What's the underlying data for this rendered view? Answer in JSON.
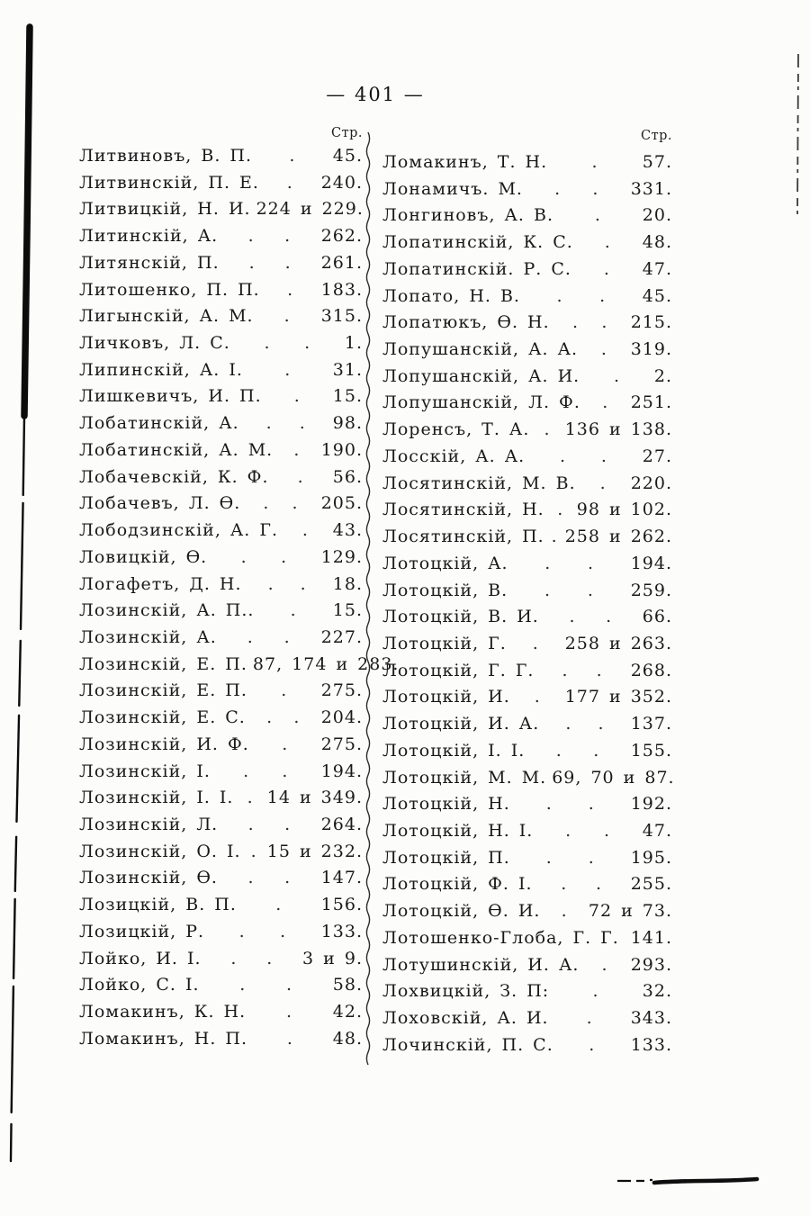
{
  "page_header": {
    "page_number_text": "— 401 —"
  },
  "left_column": {
    "header_label": "Стр.",
    "entries": [
      {
        "name": "Литвиновъ, В. П.",
        "leaders": ".",
        "pages": "45."
      },
      {
        "name": "Литвинскій, П. Е.",
        "leaders": ".",
        "pages": "240."
      },
      {
        "name": "Литвицкій, Н. И.",
        "leaders": "",
        "pages": "224 и 229."
      },
      {
        "name": "Литинскій, А.",
        "leaders": ". .",
        "pages": "262."
      },
      {
        "name": "Литянскій, П.",
        "leaders": ". .",
        "pages": "261."
      },
      {
        "name": "Литошенко, П. П.",
        "leaders": ".",
        "pages": "183."
      },
      {
        "name": "Лигынскій, А. М.",
        "leaders": ".",
        "pages": "315."
      },
      {
        "name": "Личковъ, Л. С.",
        "leaders": ". .",
        "pages": "1."
      },
      {
        "name": "Липинскій, А. І.",
        "leaders": ".",
        "pages": "31."
      },
      {
        "name": "Лишкевичъ, И. П.",
        "leaders": ".",
        "pages": "15."
      },
      {
        "name": "Лобатинскій, А.",
        "leaders": ". .",
        "pages": "98."
      },
      {
        "name": "Лобатинскій, А. М.",
        "leaders": ".",
        "pages": "190."
      },
      {
        "name": "Лобачевскій, К. Ф.",
        "leaders": ".",
        "pages": "56."
      },
      {
        "name": "Лобачевъ, Л. Ѳ.",
        "leaders": ". .",
        "pages": "205."
      },
      {
        "name": "Лободзинскій, А. Г.",
        "leaders": ".",
        "pages": "43."
      },
      {
        "name": "Ловицкій, Ѳ.",
        "leaders": ". .",
        "pages": "129."
      },
      {
        "name": "Логафетъ, Д. Н.",
        "leaders": ". .",
        "pages": "18."
      },
      {
        "name": "Лозинскій, А. П..",
        "leaders": ".",
        "pages": "15."
      },
      {
        "name": "Лозинскій, А.",
        "leaders": ". .",
        "pages": "227."
      },
      {
        "name": "Лозинскій, Е. П.",
        "leaders": "",
        "pages": "87, 174 и 283."
      },
      {
        "name": "Лозинскій, Е. П.",
        "leaders": ".",
        "pages": "275."
      },
      {
        "name": "Лозинскій, Е. С.",
        "leaders": ". .",
        "pages": "204."
      },
      {
        "name": "Лозинскій, И. Ф.",
        "leaders": ".",
        "pages": "275."
      },
      {
        "name": "Лозинскій, І.",
        "leaders": ". .",
        "pages": "194."
      },
      {
        "name": "Лозинскій, І. І.",
        "leaders": ".",
        "pages": "14 и 349."
      },
      {
        "name": "Лозинскій, Л.",
        "leaders": ". .",
        "pages": "264."
      },
      {
        "name": "Лозинскій, О. І.",
        "leaders": ".",
        "pages": "15 и 232."
      },
      {
        "name": "Лозинскій, Ѳ.",
        "leaders": ". .",
        "pages": "147."
      },
      {
        "name": "Лозицкій, В. П.",
        "leaders": ".",
        "pages": "156."
      },
      {
        "name": "Лозицкій, Р.",
        "leaders": ". .",
        "pages": "133."
      },
      {
        "name": "Лойко, И. І.",
        "leaders": ". .",
        "pages": "3 и 9."
      },
      {
        "name": "Лойко, С. І.",
        "leaders": ". .",
        "pages": "58."
      },
      {
        "name": "Ломакинъ, К. Н.",
        "leaders": ".",
        "pages": "42."
      },
      {
        "name": "Ломакинъ, Н. П.",
        "leaders": ".",
        "pages": "48."
      }
    ]
  },
  "right_column": {
    "header_label": "Стр.",
    "entries": [
      {
        "name": "Ломакинъ, Т. Н.",
        "leaders": ".",
        "pages": "57."
      },
      {
        "name": "Лонамичъ. М.",
        "leaders": ". .",
        "pages": "331."
      },
      {
        "name": "Лонгиновъ, А. В.",
        "leaders": ".",
        "pages": "20."
      },
      {
        "name": "Лопатинскій, К. С.",
        "leaders": ".",
        "pages": "48."
      },
      {
        "name": "Лопатинскій. Р. С.",
        "leaders": ".",
        "pages": "47."
      },
      {
        "name": "Лопато, Н. В.",
        "leaders": ". .",
        "pages": "45."
      },
      {
        "name": "Лопатюкъ, Ѳ. Н.",
        "leaders": ". .",
        "pages": "215."
      },
      {
        "name": "Лопушанскій, А. А.",
        "leaders": ".",
        "pages": "319."
      },
      {
        "name": "Лопушанскій, А. И.",
        "leaders": ".",
        "pages": "2."
      },
      {
        "name": "Лопушанскій, Л. Ф.",
        "leaders": ".",
        "pages": "251."
      },
      {
        "name": "Лоренсъ, Т. А.",
        "leaders": ".",
        "pages": "136 и 138."
      },
      {
        "name": "Лосскій, А. А.",
        "leaders": ". .",
        "pages": "27."
      },
      {
        "name": "Лосятинскій, М. В.",
        "leaders": ".",
        "pages": "220."
      },
      {
        "name": "Лосятинскій, Н.",
        "leaders": ".",
        "pages": "98 и 102."
      },
      {
        "name": "Лосятинскій, П.",
        "leaders": ".",
        "pages": "258 и 262."
      },
      {
        "name": "Лотоцкій, А.",
        "leaders": ". .",
        "pages": "194."
      },
      {
        "name": "Лотоцкій, В.",
        "leaders": ". .",
        "pages": "259."
      },
      {
        "name": "Лотоцкій, В. И.",
        "leaders": ". .",
        "pages": "66."
      },
      {
        "name": "Лотоцкій, Г.",
        "leaders": ".",
        "pages": "258 и 263."
      },
      {
        "name": "Лотоцкій, Г. Г.",
        "leaders": ". .",
        "pages": "268."
      },
      {
        "name": "Лотоцкій, И.",
        "leaders": ".",
        "pages": "177 и 352."
      },
      {
        "name": "Лотоцкій, И. А.",
        "leaders": ". .",
        "pages": "137."
      },
      {
        "name": "Лотоцкій, І. І.",
        "leaders": ". .",
        "pages": "155."
      },
      {
        "name": "Лотоцкій, М. М.",
        "leaders": "",
        "pages": "69, 70 и 87."
      },
      {
        "name": "Лотоцкій, Н.",
        "leaders": ". .",
        "pages": "192."
      },
      {
        "name": "Лотоцкій, Н. І.",
        "leaders": ". .",
        "pages": "47."
      },
      {
        "name": "Лотоцкій, П.",
        "leaders": ". .",
        "pages": "195."
      },
      {
        "name": "Лотоцкій, Ф. І.",
        "leaders": ". .",
        "pages": "255."
      },
      {
        "name": "Лотоцкій, Ѳ. И.",
        "leaders": ".",
        "pages": "72 и 73."
      },
      {
        "name": "Лотошенко-Глоба, Г. Г.",
        "leaders": "",
        "pages": "141."
      },
      {
        "name": "Лотушинскій, И. А.",
        "leaders": ".",
        "pages": "293."
      },
      {
        "name": "Лохвицкій, З. П:",
        "leaders": ".",
        "pages": "32."
      },
      {
        "name": "Лоховскій, А. И.",
        "leaders": ".",
        "pages": "343."
      },
      {
        "name": "Лочинскій, П. С.",
        "leaders": ".",
        "pages": "133."
      }
    ]
  },
  "ink_color": "#141414"
}
